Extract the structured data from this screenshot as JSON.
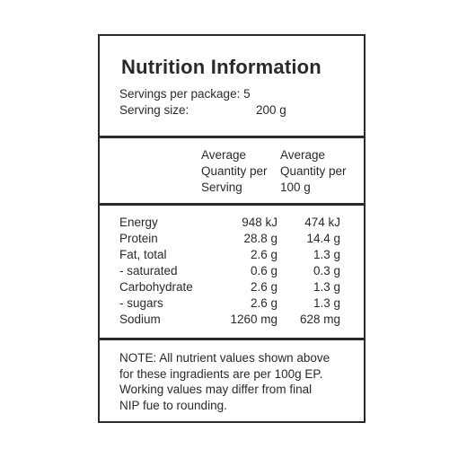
{
  "title": "Nutrition Information",
  "servings": {
    "per_package_label": "Servings per package:",
    "per_package_value": "5",
    "size_label": "Serving size:",
    "size_value": "200 g"
  },
  "headers": {
    "col1": [
      "Average",
      "Quantity per",
      "Serving"
    ],
    "col2": [
      "Average",
      "Quantity per",
      "100 g"
    ]
  },
  "rows": [
    {
      "name": "Energy",
      "per_serving": "948 kJ",
      "per_100g": "474 kJ"
    },
    {
      "name": "Protein",
      "per_serving": "28.8 g",
      "per_100g": "14.4 g"
    },
    {
      "name": "Fat, total",
      "per_serving": "2.6 g",
      "per_100g": "1.3 g"
    },
    {
      "name": "- saturated",
      "per_serving": "0.6 g",
      "per_100g": "0.3 g"
    },
    {
      "name": "Carbohydrate",
      "per_serving": "2.6 g",
      "per_100g": "1.3 g"
    },
    {
      "name": "- sugars",
      "per_serving": "2.6 g",
      "per_100g": "1.3 g"
    },
    {
      "name": "Sodium",
      "per_serving": "1260 mg",
      "per_100g": "628 mg"
    }
  ],
  "note": [
    "NOTE: All nutrient values shown above",
    "for these ingradients are per 100g EP.",
    "Working values may differ from final",
    "NIP fue to rounding."
  ]
}
